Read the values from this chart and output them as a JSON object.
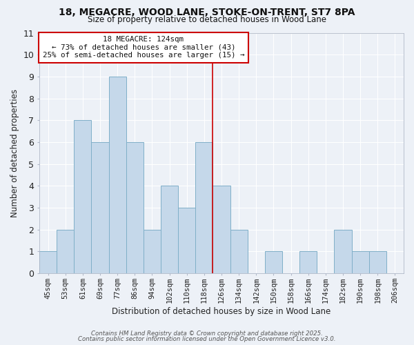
{
  "title": "18, MEGACRE, WOOD LANE, STOKE-ON-TRENT, ST7 8PA",
  "subtitle": "Size of property relative to detached houses in Wood Lane",
  "xlabel": "Distribution of detached houses by size in Wood Lane",
  "ylabel": "Number of detached properties",
  "bin_labels": [
    "45sqm",
    "53sqm",
    "61sqm",
    "69sqm",
    "77sqm",
    "86sqm",
    "94sqm",
    "102sqm",
    "110sqm",
    "118sqm",
    "126sqm",
    "134sqm",
    "142sqm",
    "150sqm",
    "158sqm",
    "166sqm",
    "174sqm",
    "182sqm",
    "190sqm",
    "198sqm",
    "206sqm"
  ],
  "bar_values": [
    1,
    2,
    7,
    6,
    9,
    6,
    2,
    4,
    3,
    6,
    4,
    2,
    0,
    1,
    0,
    1,
    0,
    2,
    1,
    1,
    0
  ],
  "bar_color": "#c5d8ea",
  "bar_edgecolor": "#7fafc8",
  "highlight_color": "#cc0000",
  "annotation_title": "18 MEGACRE: 124sqm",
  "annotation_line1": "← 73% of detached houses are smaller (43)",
  "annotation_line2": "25% of semi-detached houses are larger (15) →",
  "ylim": [
    0,
    11
  ],
  "yticks": [
    0,
    1,
    2,
    3,
    4,
    5,
    6,
    7,
    8,
    9,
    10,
    11
  ],
  "bg_color": "#edf1f7",
  "grid_color": "#ffffff",
  "footer1": "Contains HM Land Registry data © Crown copyright and database right 2025.",
  "footer2": "Contains public sector information licensed under the Open Government Licence v3.0."
}
